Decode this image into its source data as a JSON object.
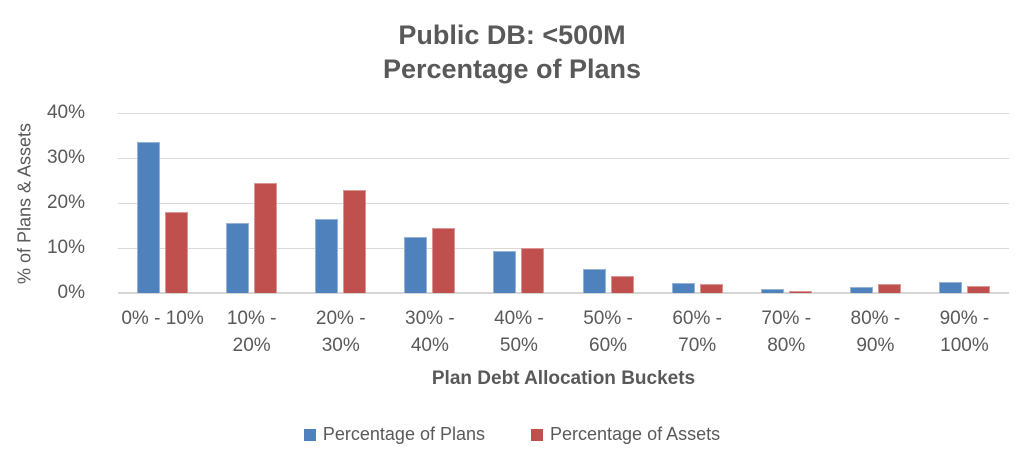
{
  "title": {
    "line1": "Public DB: <500M",
    "line2": "Percentage of Plans"
  },
  "y_axis": {
    "title": "% of Plans & Assets",
    "ticks": [
      {
        "label": "40%",
        "value": 40
      },
      {
        "label": "30%",
        "value": 30
      },
      {
        "label": "20%",
        "value": 20
      },
      {
        "label": "10%",
        "value": 10
      },
      {
        "label": "0%",
        "value": 0
      }
    ]
  },
  "x_axis": {
    "title": "Plan Debt Allocation Buckets"
  },
  "legend": [
    {
      "label": "Percentage of Plans",
      "color": "#4F81BD"
    },
    {
      "label": "Percentage of Assets",
      "color": "#C0504D"
    }
  ],
  "colors": {
    "plans_fill": "#4F81BD",
    "plans_border": "#95B3D7",
    "assets_fill": "#C0504D",
    "assets_border": "#D99694",
    "gridline": "#D9D9D9",
    "text": "#595959"
  },
  "chart_data": {
    "type": "bar",
    "title": "Public DB: <500M — Percentage of Plans",
    "categories": [
      "0% - 10%",
      "10% - 20%",
      "20% - 30%",
      "30% - 40%",
      "40% - 50%",
      "50% - 60%",
      "60% - 70%",
      "70% - 80%",
      "80% - 90%",
      "90% - 100%"
    ],
    "categories_wrapped": [
      [
        "0% - 10%"
      ],
      [
        "10% -",
        "20%"
      ],
      [
        "20% -",
        "30%"
      ],
      [
        "30% -",
        "40%"
      ],
      [
        "40% -",
        "50%"
      ],
      [
        "50% -",
        "60%"
      ],
      [
        "60% -",
        "70%"
      ],
      [
        "70% -",
        "80%"
      ],
      [
        "80% -",
        "90%"
      ],
      [
        "90% -",
        "100%"
      ]
    ],
    "series": [
      {
        "name": "Percentage of Plans",
        "color": "#4F81BD",
        "border": "#95B3D7",
        "values": [
          33.5,
          15.5,
          16.5,
          12.5,
          9.3,
          5.4,
          2.2,
          1.0,
          1.4,
          2.5
        ]
      },
      {
        "name": "Percentage of Assets",
        "color": "#C0504D",
        "border": "#D99694",
        "values": [
          18.0,
          24.5,
          23.0,
          14.5,
          10.0,
          3.8,
          1.9,
          0.5,
          2.1,
          1.6
        ]
      }
    ],
    "xlabel": "Plan Debt Allocation Buckets",
    "ylabel": "% of Plans & Assets",
    "ylim": [
      0,
      40
    ],
    "ytick_step": 10,
    "grid": true,
    "legend_position": "bottom"
  }
}
